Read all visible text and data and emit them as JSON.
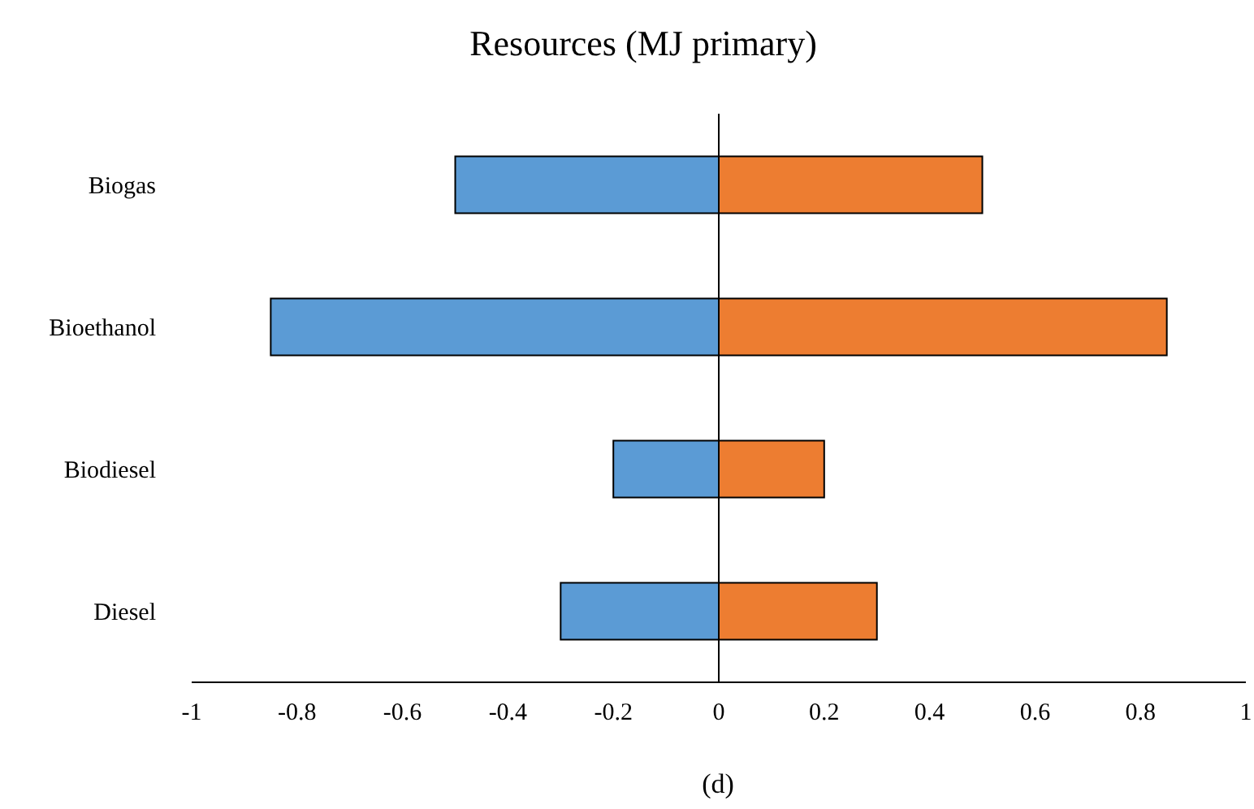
{
  "chart_data": {
    "type": "bar",
    "title": "Resources  (MJ primary)",
    "orientation": "horizontal",
    "stacked": true,
    "categories": [
      "Biogas",
      "Bioethanol",
      "Biodiesel",
      "Diesel"
    ],
    "series": [
      {
        "color": "#5b9bd5",
        "values": [
          -0.5,
          -0.85,
          -0.2,
          -0.3
        ]
      },
      {
        "color": "#ed7d31",
        "values": [
          0.5,
          0.85,
          0.2,
          0.3
        ]
      }
    ],
    "xlim": [
      -1,
      1
    ],
    "xticks": [
      -1,
      -0.8,
      -0.6,
      -0.4,
      -0.2,
      0,
      0.2,
      0.4,
      0.6,
      0.8,
      1
    ],
    "ref_lines": [
      {
        "axis": "x",
        "value": 0
      }
    ],
    "annotations": [
      "(d)"
    ]
  }
}
